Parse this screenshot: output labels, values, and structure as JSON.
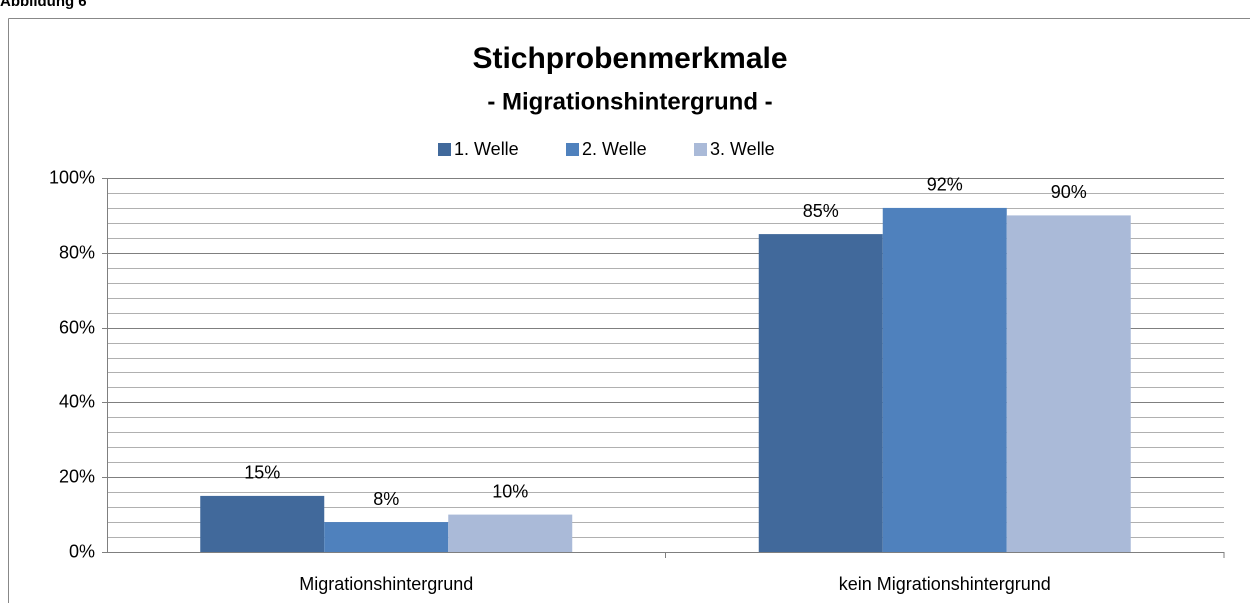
{
  "header": "Abbildung 6",
  "chart_data": {
    "type": "bar",
    "title": "Stichprobenmerkmale",
    "subtitle": "- Migrationshintergrund -",
    "categories": [
      "Migrationshintergrund",
      "kein Migrationshintergrund"
    ],
    "series": [
      {
        "name": "1. Welle",
        "color": "#41699b",
        "values": [
          15,
          85
        ],
        "value_labels": [
          "15%",
          "85%"
        ]
      },
      {
        "name": "2. Welle",
        "color": "#4f81bd",
        "values": [
          8,
          92
        ],
        "value_labels": [
          "8%",
          "92%"
        ]
      },
      {
        "name": "3. Welle",
        "color": "#aabad8",
        "values": [
          10,
          90
        ],
        "value_labels": [
          "10%",
          "90%"
        ]
      }
    ],
    "ylim": [
      0,
      100
    ],
    "yticks": [
      {
        "value": 0,
        "label": "0%"
      },
      {
        "value": 20,
        "label": "20%"
      },
      {
        "value": 40,
        "label": "40%"
      },
      {
        "value": 60,
        "label": "60%"
      },
      {
        "value": 80,
        "label": "80%"
      },
      {
        "value": 100,
        "label": "100%"
      }
    ],
    "minor_yticks": [
      4,
      8,
      12,
      16,
      24,
      28,
      32,
      36,
      44,
      48,
      52,
      56,
      64,
      68,
      72,
      76,
      84,
      88,
      92,
      96
    ],
    "grid": true,
    "legend": "top"
  }
}
